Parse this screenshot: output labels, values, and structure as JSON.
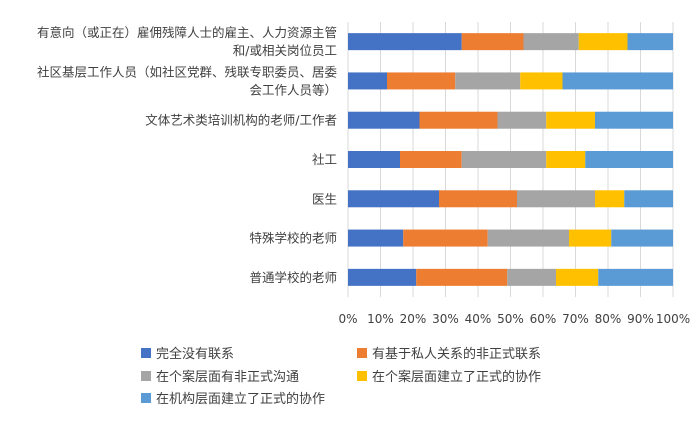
{
  "chart_data": {
    "type": "bar",
    "orientation": "horizontal",
    "stacked": "percent",
    "categories": [
      [
        "有意向（或正在）雇佣残障人士的雇主、人力资源主管",
        "和/或相关岗位员工"
      ],
      [
        "社区基层工作人员（如社区党群、残联专职委员、居委",
        "会工作人员等）"
      ],
      [
        "文体艺术类培训机构的老师/工作者"
      ],
      [
        "社工"
      ],
      [
        "医生"
      ],
      [
        "特殊学校的老师"
      ],
      [
        "普通学校的老师"
      ]
    ],
    "series": [
      {
        "name": "完全没有联系",
        "color": "#4472C4",
        "values": [
          35,
          12,
          22,
          16,
          28,
          17,
          21
        ]
      },
      {
        "name": "有基于私人关系的非正式联系",
        "color": "#ED7D31",
        "values": [
          19,
          21,
          24,
          19,
          24,
          26,
          28
        ]
      },
      {
        "name": "在个案层面有非正式沟通",
        "color": "#A5A5A5",
        "values": [
          17,
          20,
          15,
          26,
          24,
          25,
          15
        ]
      },
      {
        "name": "在个案层面建立了正式的协作",
        "color": "#FFC000",
        "values": [
          15,
          13,
          15,
          12,
          9,
          13,
          13
        ]
      },
      {
        "name": "在机构层面建立了正式的协作",
        "color": "#5B9BD5",
        "values": [
          14,
          34,
          24,
          27,
          15,
          19,
          23
        ]
      }
    ],
    "xlim": [
      0,
      100
    ],
    "xticks": [
      "0%",
      "10%",
      "20%",
      "30%",
      "40%",
      "50%",
      "60%",
      "70%",
      "80%",
      "90%",
      "100%"
    ],
    "grid": true,
    "legend": "bottom"
  }
}
